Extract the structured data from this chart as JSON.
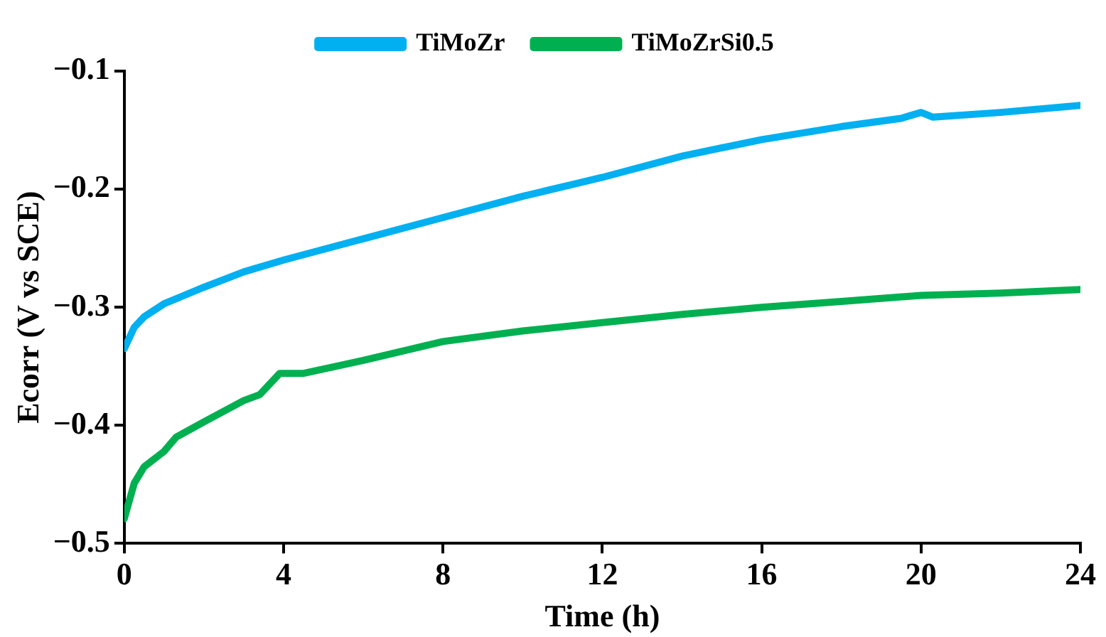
{
  "chart_data": {
    "type": "line",
    "xlabel": "Time (h)",
    "ylabel": "Ecorr (V vs SCE)",
    "xlim": [
      0,
      24
    ],
    "xticks": [
      0,
      4,
      8,
      12,
      16,
      20,
      24
    ],
    "ylim": [
      -0.5,
      -0.1
    ],
    "yticks": [
      {
        "value": -0.5,
        "label": "−0.5"
      },
      {
        "value": -0.4,
        "label": "−0.4"
      },
      {
        "value": -0.3,
        "label": "−0.3"
      },
      {
        "value": -0.2,
        "label": "−0.2"
      },
      {
        "value": -0.1,
        "label": "−0.1"
      }
    ],
    "grid": false,
    "legend": "top",
    "marker": "none",
    "line_style": "solid",
    "series": [
      {
        "name": "TiMoZr",
        "color": "#00b0f0",
        "x": [
          0,
          0.25,
          0.5,
          1,
          2,
          3,
          4,
          6,
          8,
          10,
          12,
          14,
          16,
          18,
          19.5,
          20,
          20.3,
          22,
          24
        ],
        "values": [
          -0.335,
          -0.317,
          -0.308,
          -0.297,
          -0.283,
          -0.27,
          -0.26,
          -0.242,
          -0.224,
          -0.206,
          -0.19,
          -0.172,
          -0.158,
          -0.147,
          -0.14,
          -0.135,
          -0.139,
          -0.135,
          -0.129
        ]
      },
      {
        "name": "TiMoZrSi0.5",
        "color": "#00b050",
        "x": [
          0,
          0.25,
          0.5,
          1,
          1.3,
          2,
          3,
          3.4,
          3.9,
          4.5,
          6,
          8,
          10,
          12,
          14,
          16,
          18,
          20,
          22,
          24
        ],
        "values": [
          -0.479,
          -0.449,
          -0.435,
          -0.422,
          -0.41,
          -0.397,
          -0.379,
          -0.374,
          -0.356,
          -0.356,
          -0.345,
          -0.329,
          -0.32,
          -0.313,
          -0.306,
          -0.3,
          -0.295,
          -0.29,
          -0.288,
          -0.285
        ]
      }
    ]
  }
}
